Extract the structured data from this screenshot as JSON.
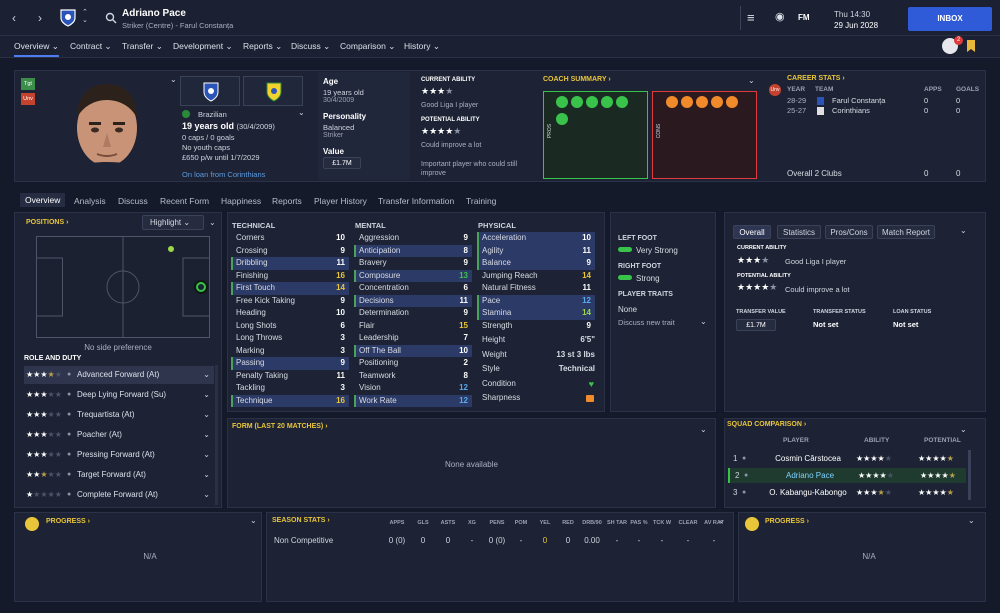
{
  "topbar": {
    "name": "Adriano Pace",
    "subtitle": "Striker (Centre) - Farul Constanța",
    "date_line1": "Thu 14:30",
    "date_line2": "29 Jun 2028",
    "inbox": "INBOX",
    "fm_label": "FM"
  },
  "nav": [
    "Overview",
    "Contract",
    "Transfer",
    "Development",
    "Reports",
    "Discuss",
    "Comparison",
    "History"
  ],
  "profile": {
    "nationality": "Brazilian",
    "age_line": "19 years old",
    "dob": "(30/4/2009)",
    "caps": "0 caps / 0 goals",
    "youth_caps": "No youth caps",
    "wage": "£650 p/w until 1/7/2029",
    "loan": "On loan from Corinthians",
    "tgt": "Tgt",
    "unv": "Unv"
  },
  "info": {
    "age_label": "Age",
    "age_value": "19 years old",
    "age_dob": "30/4/2009",
    "personality_label": "Personality",
    "personality_value": "Balanced",
    "personality_sub": "Striker",
    "value_label": "Value",
    "value_amount": "£1.7M"
  },
  "ability": {
    "current_label": "CURRENT ABILITY",
    "current_text": "Good Liga I player",
    "potential_label": "POTENTIAL ABILITY",
    "potential_text": "Could improve a lot",
    "note": "Important player who could still improve",
    "current_stars": 3.5,
    "potential_stars": 4.5
  },
  "coach": {
    "title": "COACH SUMMARY",
    "pros": "PROS",
    "cons": "CONS"
  },
  "career": {
    "title": "CAREER STATS",
    "headers": [
      "YEAR",
      "TEAM",
      "APPS",
      "GOALS"
    ],
    "rows": [
      {
        "year": "28-29",
        "team": "Farul Constanța",
        "apps": "0",
        "goals": "0"
      },
      {
        "year": "25-27",
        "team": "Corinthians",
        "apps": "0",
        "goals": "0"
      }
    ],
    "overall_label": "Overall 2 Clubs",
    "overall_apps": "0",
    "overall_goals": "0"
  },
  "subtabs": [
    "Overview",
    "Analysis",
    "Discuss",
    "Recent Form",
    "Happiness",
    "Reports",
    "Player History",
    "Transfer Information",
    "Training"
  ],
  "positions": {
    "title": "POSITIONS",
    "highlight": "Highlight",
    "side_pref": "No side preference"
  },
  "roles": {
    "title": "ROLE AND DUTY",
    "items": [
      {
        "label": "Advanced Forward (At)",
        "stars": 3.5
      },
      {
        "label": "Deep Lying Forward (Su)",
        "stars": 3
      },
      {
        "label": "Trequartista (At)",
        "stars": 3
      },
      {
        "label": "Poacher (At)",
        "stars": 3
      },
      {
        "label": "Pressing Forward (At)",
        "stars": 3
      },
      {
        "label": "Target Forward (At)",
        "stars": 2.5
      },
      {
        "label": "Complete Forward (At)",
        "stars": 1
      }
    ]
  },
  "technical": {
    "title": "TECHNICAL",
    "items": [
      {
        "n": "Corners",
        "v": "10"
      },
      {
        "n": "Crossing",
        "v": "9"
      },
      {
        "n": "Dribbling",
        "v": "11"
      },
      {
        "n": "Finishing",
        "v": "16"
      },
      {
        "n": "First Touch",
        "v": "14"
      },
      {
        "n": "Free Kick Taking",
        "v": "9"
      },
      {
        "n": "Heading",
        "v": "10"
      },
      {
        "n": "Long Shots",
        "v": "6"
      },
      {
        "n": "Long Throws",
        "v": "3"
      },
      {
        "n": "Marking",
        "v": "3"
      },
      {
        "n": "Passing",
        "v": "9"
      },
      {
        "n": "Penalty Taking",
        "v": "11"
      },
      {
        "n": "Tackling",
        "v": "3"
      },
      {
        "n": "Technique",
        "v": "16"
      }
    ]
  },
  "mental": {
    "title": "MENTAL",
    "items": [
      {
        "n": "Aggression",
        "v": "9"
      },
      {
        "n": "Anticipation",
        "v": "8"
      },
      {
        "n": "Bravery",
        "v": "9"
      },
      {
        "n": "Composure",
        "v": "13"
      },
      {
        "n": "Concentration",
        "v": "6"
      },
      {
        "n": "Decisions",
        "v": "11"
      },
      {
        "n": "Determination",
        "v": "9"
      },
      {
        "n": "Flair",
        "v": "15"
      },
      {
        "n": "Leadership",
        "v": "7"
      },
      {
        "n": "Off The Ball",
        "v": "10"
      },
      {
        "n": "Positioning",
        "v": "2"
      },
      {
        "n": "Teamwork",
        "v": "8"
      },
      {
        "n": "Vision",
        "v": "12"
      },
      {
        "n": "Work Rate",
        "v": "12"
      }
    ]
  },
  "physical": {
    "title": "PHYSICAL",
    "items": [
      {
        "n": "Acceleration",
        "v": "10"
      },
      {
        "n": "Agility",
        "v": "11"
      },
      {
        "n": "Balance",
        "v": "9"
      },
      {
        "n": "Jumping Reach",
        "v": "14"
      },
      {
        "n": "Natural Fitness",
        "v": "11"
      },
      {
        "n": "Pace",
        "v": "12"
      },
      {
        "n": "Stamina",
        "v": "14"
      },
      {
        "n": "Strength",
        "v": "9"
      }
    ],
    "extra": [
      {
        "n": "Height",
        "v": "6'5\""
      },
      {
        "n": "Weight",
        "v": "13 st 3 lbs"
      },
      {
        "n": "Style",
        "v": "Technical"
      },
      {
        "n": "Condition",
        "v": ""
      },
      {
        "n": "Sharpness",
        "v": ""
      }
    ]
  },
  "feet": {
    "left_label": "LEFT FOOT",
    "left_value": "Very Strong",
    "right_label": "RIGHT FOOT",
    "right_value": "Strong",
    "traits_label": "PLAYER TRAITS",
    "traits_value": "None",
    "discuss": "Discuss new trait"
  },
  "overview_panel": {
    "tabs": [
      "Overall",
      "Statistics",
      "Pros/Cons",
      "Match Report"
    ],
    "ca_label": "CURRENT ABILITY",
    "ca_text": "Good Liga I player",
    "pa_label": "POTENTIAL ABILITY",
    "pa_text": "Could improve a lot",
    "tv_label": "TRANSFER VALUE",
    "tv_value": "£1.7M",
    "ts_label": "TRANSFER STATUS",
    "ts_value": "Not set",
    "ls_label": "LOAN STATUS",
    "ls_value": "Not set"
  },
  "form": {
    "title": "FORM (LAST 20 MATCHES)",
    "empty": "None available"
  },
  "squad": {
    "title": "SQUAD COMPARISON",
    "headers": [
      "PLAYER",
      "ABILITY",
      "POTENTIAL"
    ],
    "rows": [
      {
        "rank": "1",
        "name": "Cosmin Cârstocea"
      },
      {
        "rank": "2",
        "name": "Adriano Pace"
      },
      {
        "rank": "3",
        "name": "O. Kabangu-Kabongo"
      }
    ]
  },
  "progress_left": {
    "title": "PROGRESS",
    "value": "N/A"
  },
  "progress_right": {
    "title": "PROGRESS",
    "value": "N/A"
  },
  "season": {
    "title": "SEASON STATS",
    "headers": [
      "APPS",
      "GLS",
      "ASTS",
      "XG",
      "PENS",
      "POM",
      "YEL",
      "RED",
      "DRB/90",
      "SH TAR",
      "PAS %",
      "TCK W",
      "CLEAR",
      "AV RAT"
    ],
    "row_label": "Non Competitive",
    "values": [
      "0 (0)",
      "0",
      "0",
      "-",
      "0 (0)",
      "-",
      "0",
      "0",
      "0.00",
      "-",
      "-",
      "-",
      "-",
      "-"
    ]
  },
  "colors": {
    "accent": "#2f5bd8",
    "green": "#39c34a",
    "red": "#e03b3b",
    "orange": "#f08a2a",
    "yellow": "#e9c53a"
  }
}
